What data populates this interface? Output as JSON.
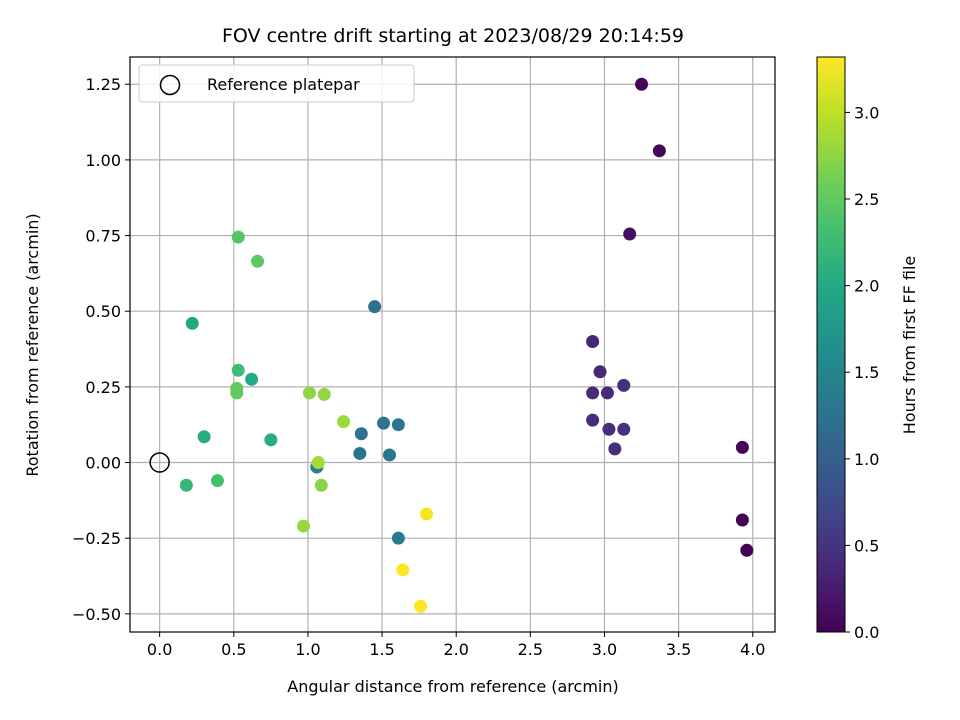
{
  "chart_data": {
    "type": "scatter",
    "title": "FOV centre drift starting at 2023/08/29 20:14:59",
    "xlabel": "Angular distance from reference (arcmin)",
    "ylabel": "Rotation from reference (arcmin)",
    "xlim": [
      -0.2,
      4.15
    ],
    "ylim": [
      -0.56,
      1.34
    ],
    "xticks": [
      0.0,
      0.5,
      1.0,
      1.5,
      2.0,
      2.5,
      3.0,
      3.5,
      4.0
    ],
    "xtick_labels": [
      "0.0",
      "0.5",
      "1.0",
      "1.5",
      "2.0",
      "2.5",
      "3.0",
      "3.5",
      "4.0"
    ],
    "yticks": [
      -0.5,
      -0.25,
      0.0,
      0.25,
      0.5,
      0.75,
      1.0,
      1.25
    ],
    "ytick_labels": [
      "−0.50",
      "−0.25",
      "0.00",
      "0.25",
      "0.50",
      "0.75",
      "1.00",
      "1.25"
    ],
    "grid": true,
    "legend": {
      "position": "top-left",
      "label": "Reference platepar"
    },
    "reference_point": {
      "x": 0.0,
      "y": 0.0
    },
    "colorbar": {
      "label": "Hours from first FF file",
      "colormap": "viridis",
      "range": [
        0.0,
        3.32
      ],
      "ticks": [
        0.0,
        0.5,
        1.0,
        1.5,
        2.0,
        2.5,
        3.0
      ],
      "tick_labels": [
        "0.0",
        "0.5",
        "1.0",
        "1.5",
        "2.0",
        "2.5",
        "3.0"
      ]
    },
    "points": [
      {
        "x": 3.25,
        "y": 1.25,
        "h": 0.05
      },
      {
        "x": 3.37,
        "y": 1.03,
        "h": 0.08
      },
      {
        "x": 3.17,
        "y": 0.755,
        "h": 0.12
      },
      {
        "x": 3.93,
        "y": 0.05,
        "h": 0.04
      },
      {
        "x": 3.93,
        "y": -0.19,
        "h": 0.02
      },
      {
        "x": 3.96,
        "y": -0.29,
        "h": 0.0
      },
      {
        "x": 2.92,
        "y": 0.4,
        "h": 0.35
      },
      {
        "x": 2.97,
        "y": 0.3,
        "h": 0.38
      },
      {
        "x": 2.92,
        "y": 0.23,
        "h": 0.4
      },
      {
        "x": 3.02,
        "y": 0.23,
        "h": 0.42
      },
      {
        "x": 3.13,
        "y": 0.255,
        "h": 0.45
      },
      {
        "x": 2.92,
        "y": 0.14,
        "h": 0.43
      },
      {
        "x": 3.03,
        "y": 0.11,
        "h": 0.46
      },
      {
        "x": 3.13,
        "y": 0.11,
        "h": 0.48
      },
      {
        "x": 3.07,
        "y": 0.045,
        "h": 0.44
      },
      {
        "x": 1.45,
        "y": 0.515,
        "h": 1.22
      },
      {
        "x": 1.51,
        "y": 0.13,
        "h": 1.28
      },
      {
        "x": 1.61,
        "y": 0.125,
        "h": 1.3
      },
      {
        "x": 1.36,
        "y": 0.095,
        "h": 1.25
      },
      {
        "x": 1.35,
        "y": 0.03,
        "h": 1.27
      },
      {
        "x": 1.55,
        "y": 0.025,
        "h": 1.32
      },
      {
        "x": 1.61,
        "y": -0.25,
        "h": 1.35
      },
      {
        "x": 1.06,
        "y": -0.015,
        "h": 1.45
      },
      {
        "x": 0.75,
        "y": 0.075,
        "h": 2.05
      },
      {
        "x": 0.62,
        "y": 0.275,
        "h": 2.0
      },
      {
        "x": 0.53,
        "y": 0.305,
        "h": 2.28
      },
      {
        "x": 0.22,
        "y": 0.46,
        "h": 1.98
      },
      {
        "x": 0.3,
        "y": 0.085,
        "h": 2.05
      },
      {
        "x": 0.18,
        "y": -0.075,
        "h": 2.2
      },
      {
        "x": 0.39,
        "y": -0.06,
        "h": 2.32
      },
      {
        "x": 0.53,
        "y": 0.745,
        "h": 2.42
      },
      {
        "x": 0.66,
        "y": 0.665,
        "h": 2.48
      },
      {
        "x": 0.52,
        "y": 0.245,
        "h": 2.52
      },
      {
        "x": 0.52,
        "y": 0.23,
        "h": 2.5
      },
      {
        "x": 1.01,
        "y": 0.23,
        "h": 2.75
      },
      {
        "x": 1.11,
        "y": 0.225,
        "h": 2.78
      },
      {
        "x": 1.24,
        "y": 0.135,
        "h": 2.82
      },
      {
        "x": 1.07,
        "y": 0.0,
        "h": 2.88
      },
      {
        "x": 1.09,
        "y": -0.075,
        "h": 2.72
      },
      {
        "x": 0.97,
        "y": -0.21,
        "h": 2.8
      },
      {
        "x": 1.8,
        "y": -0.17,
        "h": 3.28
      },
      {
        "x": 1.64,
        "y": -0.355,
        "h": 3.3
      },
      {
        "x": 1.76,
        "y": -0.475,
        "h": 3.32
      }
    ]
  }
}
